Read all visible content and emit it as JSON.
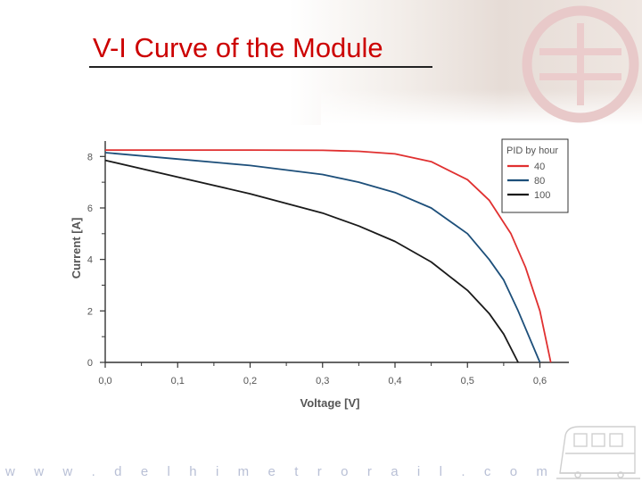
{
  "slide": {
    "title": "V-I Curve of the Module",
    "footer_url": "w w w . d e l h i m e t r o r a i l . c o m"
  },
  "colors": {
    "title": "#cc0000",
    "series_40": "#e03030",
    "series_80": "#1d4f7a",
    "series_100": "#1a1a1a",
    "axis": "#333333"
  },
  "chart_data": {
    "type": "line",
    "xlabel": "Voltage [V]",
    "ylabel": "Current [A]",
    "xlim": [
      0.0,
      0.64
    ],
    "ylim": [
      0,
      8.6
    ],
    "x_ticks": [
      "0,0",
      "0,1",
      "0,2",
      "0,3",
      "0,4",
      "0,5",
      "0,6"
    ],
    "y_ticks": [
      "0",
      "2",
      "4",
      "6",
      "8"
    ],
    "legend_title": "PID by hour",
    "legend_position": "top-right",
    "grid": false,
    "series": [
      {
        "name": "40",
        "points": [
          [
            0.0,
            8.25
          ],
          [
            0.1,
            8.25
          ],
          [
            0.2,
            8.25
          ],
          [
            0.3,
            8.24
          ],
          [
            0.35,
            8.2
          ],
          [
            0.4,
            8.1
          ],
          [
            0.45,
            7.8
          ],
          [
            0.5,
            7.1
          ],
          [
            0.53,
            6.3
          ],
          [
            0.56,
            5.0
          ],
          [
            0.58,
            3.7
          ],
          [
            0.6,
            2.0
          ],
          [
            0.615,
            0.0
          ]
        ]
      },
      {
        "name": "80",
        "points": [
          [
            0.0,
            8.15
          ],
          [
            0.1,
            7.9
          ],
          [
            0.2,
            7.65
          ],
          [
            0.3,
            7.3
          ],
          [
            0.35,
            7.0
          ],
          [
            0.4,
            6.6
          ],
          [
            0.45,
            6.0
          ],
          [
            0.5,
            5.0
          ],
          [
            0.53,
            4.0
          ],
          [
            0.55,
            3.2
          ],
          [
            0.57,
            2.0
          ],
          [
            0.6,
            0.0
          ]
        ]
      },
      {
        "name": "100",
        "points": [
          [
            0.0,
            7.85
          ],
          [
            0.1,
            7.2
          ],
          [
            0.2,
            6.55
          ],
          [
            0.3,
            5.8
          ],
          [
            0.35,
            5.3
          ],
          [
            0.4,
            4.7
          ],
          [
            0.45,
            3.9
          ],
          [
            0.5,
            2.8
          ],
          [
            0.53,
            1.9
          ],
          [
            0.55,
            1.1
          ],
          [
            0.57,
            0.0
          ]
        ]
      }
    ]
  }
}
